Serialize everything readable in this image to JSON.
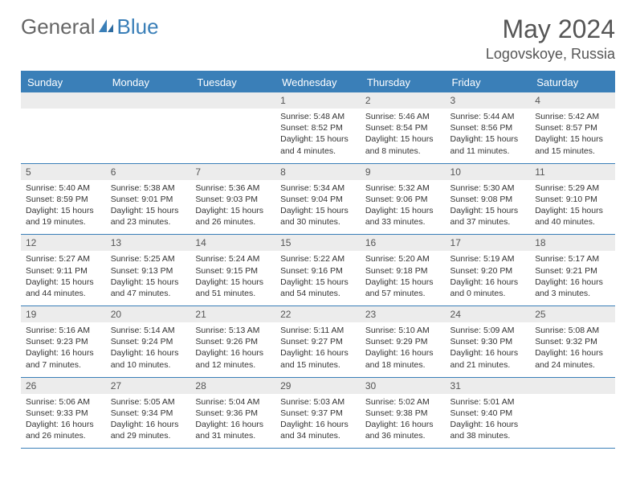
{
  "brand": {
    "part1": "General",
    "part2": "Blue"
  },
  "title": {
    "month": "May 2024",
    "location": "Logovskoye, Russia"
  },
  "colors": {
    "accent": "#3a7fb8",
    "header_bg": "#3a7fb8",
    "header_fg": "#ffffff",
    "daynum_bg": "#ececec",
    "text": "#333333",
    "title_color": "#555555"
  },
  "calendar": {
    "type": "table",
    "day_headers": [
      "Sunday",
      "Monday",
      "Tuesday",
      "Wednesday",
      "Thursday",
      "Friday",
      "Saturday"
    ],
    "weeks": [
      [
        null,
        null,
        null,
        {
          "n": "1",
          "sr": "Sunrise: 5:48 AM",
          "ss": "Sunset: 8:52 PM",
          "d1": "Daylight: 15 hours",
          "d2": "and 4 minutes."
        },
        {
          "n": "2",
          "sr": "Sunrise: 5:46 AM",
          "ss": "Sunset: 8:54 PM",
          "d1": "Daylight: 15 hours",
          "d2": "and 8 minutes."
        },
        {
          "n": "3",
          "sr": "Sunrise: 5:44 AM",
          "ss": "Sunset: 8:56 PM",
          "d1": "Daylight: 15 hours",
          "d2": "and 11 minutes."
        },
        {
          "n": "4",
          "sr": "Sunrise: 5:42 AM",
          "ss": "Sunset: 8:57 PM",
          "d1": "Daylight: 15 hours",
          "d2": "and 15 minutes."
        }
      ],
      [
        {
          "n": "5",
          "sr": "Sunrise: 5:40 AM",
          "ss": "Sunset: 8:59 PM",
          "d1": "Daylight: 15 hours",
          "d2": "and 19 minutes."
        },
        {
          "n": "6",
          "sr": "Sunrise: 5:38 AM",
          "ss": "Sunset: 9:01 PM",
          "d1": "Daylight: 15 hours",
          "d2": "and 23 minutes."
        },
        {
          "n": "7",
          "sr": "Sunrise: 5:36 AM",
          "ss": "Sunset: 9:03 PM",
          "d1": "Daylight: 15 hours",
          "d2": "and 26 minutes."
        },
        {
          "n": "8",
          "sr": "Sunrise: 5:34 AM",
          "ss": "Sunset: 9:04 PM",
          "d1": "Daylight: 15 hours",
          "d2": "and 30 minutes."
        },
        {
          "n": "9",
          "sr": "Sunrise: 5:32 AM",
          "ss": "Sunset: 9:06 PM",
          "d1": "Daylight: 15 hours",
          "d2": "and 33 minutes."
        },
        {
          "n": "10",
          "sr": "Sunrise: 5:30 AM",
          "ss": "Sunset: 9:08 PM",
          "d1": "Daylight: 15 hours",
          "d2": "and 37 minutes."
        },
        {
          "n": "11",
          "sr": "Sunrise: 5:29 AM",
          "ss": "Sunset: 9:10 PM",
          "d1": "Daylight: 15 hours",
          "d2": "and 40 minutes."
        }
      ],
      [
        {
          "n": "12",
          "sr": "Sunrise: 5:27 AM",
          "ss": "Sunset: 9:11 PM",
          "d1": "Daylight: 15 hours",
          "d2": "and 44 minutes."
        },
        {
          "n": "13",
          "sr": "Sunrise: 5:25 AM",
          "ss": "Sunset: 9:13 PM",
          "d1": "Daylight: 15 hours",
          "d2": "and 47 minutes."
        },
        {
          "n": "14",
          "sr": "Sunrise: 5:24 AM",
          "ss": "Sunset: 9:15 PM",
          "d1": "Daylight: 15 hours",
          "d2": "and 51 minutes."
        },
        {
          "n": "15",
          "sr": "Sunrise: 5:22 AM",
          "ss": "Sunset: 9:16 PM",
          "d1": "Daylight: 15 hours",
          "d2": "and 54 minutes."
        },
        {
          "n": "16",
          "sr": "Sunrise: 5:20 AM",
          "ss": "Sunset: 9:18 PM",
          "d1": "Daylight: 15 hours",
          "d2": "and 57 minutes."
        },
        {
          "n": "17",
          "sr": "Sunrise: 5:19 AM",
          "ss": "Sunset: 9:20 PM",
          "d1": "Daylight: 16 hours",
          "d2": "and 0 minutes."
        },
        {
          "n": "18",
          "sr": "Sunrise: 5:17 AM",
          "ss": "Sunset: 9:21 PM",
          "d1": "Daylight: 16 hours",
          "d2": "and 3 minutes."
        }
      ],
      [
        {
          "n": "19",
          "sr": "Sunrise: 5:16 AM",
          "ss": "Sunset: 9:23 PM",
          "d1": "Daylight: 16 hours",
          "d2": "and 7 minutes."
        },
        {
          "n": "20",
          "sr": "Sunrise: 5:14 AM",
          "ss": "Sunset: 9:24 PM",
          "d1": "Daylight: 16 hours",
          "d2": "and 10 minutes."
        },
        {
          "n": "21",
          "sr": "Sunrise: 5:13 AM",
          "ss": "Sunset: 9:26 PM",
          "d1": "Daylight: 16 hours",
          "d2": "and 12 minutes."
        },
        {
          "n": "22",
          "sr": "Sunrise: 5:11 AM",
          "ss": "Sunset: 9:27 PM",
          "d1": "Daylight: 16 hours",
          "d2": "and 15 minutes."
        },
        {
          "n": "23",
          "sr": "Sunrise: 5:10 AM",
          "ss": "Sunset: 9:29 PM",
          "d1": "Daylight: 16 hours",
          "d2": "and 18 minutes."
        },
        {
          "n": "24",
          "sr": "Sunrise: 5:09 AM",
          "ss": "Sunset: 9:30 PM",
          "d1": "Daylight: 16 hours",
          "d2": "and 21 minutes."
        },
        {
          "n": "25",
          "sr": "Sunrise: 5:08 AM",
          "ss": "Sunset: 9:32 PM",
          "d1": "Daylight: 16 hours",
          "d2": "and 24 minutes."
        }
      ],
      [
        {
          "n": "26",
          "sr": "Sunrise: 5:06 AM",
          "ss": "Sunset: 9:33 PM",
          "d1": "Daylight: 16 hours",
          "d2": "and 26 minutes."
        },
        {
          "n": "27",
          "sr": "Sunrise: 5:05 AM",
          "ss": "Sunset: 9:34 PM",
          "d1": "Daylight: 16 hours",
          "d2": "and 29 minutes."
        },
        {
          "n": "28",
          "sr": "Sunrise: 5:04 AM",
          "ss": "Sunset: 9:36 PM",
          "d1": "Daylight: 16 hours",
          "d2": "and 31 minutes."
        },
        {
          "n": "29",
          "sr": "Sunrise: 5:03 AM",
          "ss": "Sunset: 9:37 PM",
          "d1": "Daylight: 16 hours",
          "d2": "and 34 minutes."
        },
        {
          "n": "30",
          "sr": "Sunrise: 5:02 AM",
          "ss": "Sunset: 9:38 PM",
          "d1": "Daylight: 16 hours",
          "d2": "and 36 minutes."
        },
        {
          "n": "31",
          "sr": "Sunrise: 5:01 AM",
          "ss": "Sunset: 9:40 PM",
          "d1": "Daylight: 16 hours",
          "d2": "and 38 minutes."
        },
        null
      ]
    ]
  }
}
